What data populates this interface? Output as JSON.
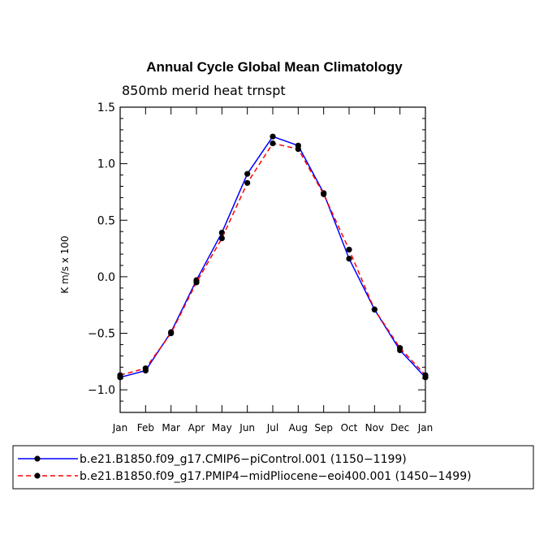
{
  "chart_data": {
    "type": "line",
    "title": "Annual Cycle Global Mean Climatology",
    "subtitle": "850mb  merid  heat  trnspt",
    "ylabel": "K m/s x 100",
    "xlabel": "",
    "categories": [
      "Jan",
      "Feb",
      "Mar",
      "Apr",
      "May",
      "Jun",
      "Jul",
      "Aug",
      "Sep",
      "Oct",
      "Nov",
      "Dec",
      "Jan"
    ],
    "ylim": [
      -1.2,
      1.5
    ],
    "yticks": [
      -1.0,
      -0.5,
      0.0,
      0.5,
      1.0,
      1.5
    ],
    "ytick_labels": [
      "−1.0",
      "−0.5",
      "0.0",
      "0.5",
      "1.0",
      "1.5"
    ],
    "grid": false,
    "legend_position": "bottom",
    "series": [
      {
        "name": "b.e21.B1850.f09_g17.CMIP6−piControl.001 (1150−1199)",
        "color": "#0000ff",
        "dash": "solid",
        "values": [
          -0.89,
          -0.83,
          -0.49,
          -0.03,
          0.39,
          0.91,
          1.24,
          1.16,
          0.74,
          0.16,
          -0.29,
          -0.65,
          -0.89
        ]
      },
      {
        "name": "b.e21.B1850.f09_g17.PMIP4−midPliocene−eoi400.001 (1450−1499)",
        "color": "#ff0000",
        "dash": "dashed",
        "values": [
          -0.87,
          -0.81,
          -0.5,
          -0.05,
          0.34,
          0.83,
          1.18,
          1.13,
          0.73,
          0.24,
          -0.29,
          -0.63,
          -0.87
        ]
      }
    ]
  }
}
